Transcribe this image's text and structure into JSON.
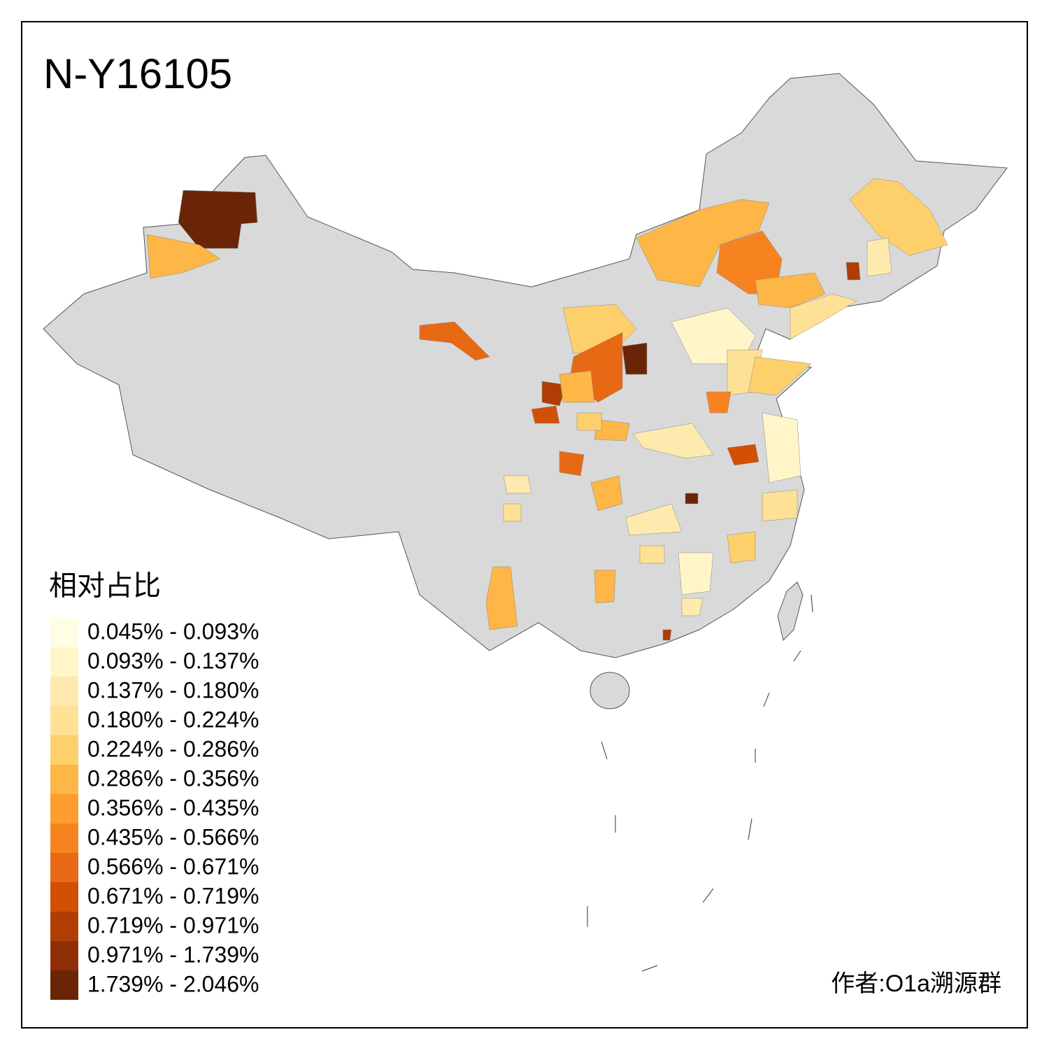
{
  "title": "N-Y16105",
  "legend": {
    "title": "相对占比",
    "items": [
      {
        "label": "0.045% - 0.093%",
        "color": "#fffde3"
      },
      {
        "label": "0.093% - 0.137%",
        "color": "#fff5c9"
      },
      {
        "label": "0.137% - 0.180%",
        "color": "#feeaae"
      },
      {
        "label": "0.180% - 0.224%",
        "color": "#fee195"
      },
      {
        "label": "0.224% - 0.286%",
        "color": "#fed06b"
      },
      {
        "label": "0.286% - 0.356%",
        "color": "#feb646"
      },
      {
        "label": "0.356% - 0.435%",
        "color": "#fd9d2d"
      },
      {
        "label": "0.435% - 0.566%",
        "color": "#f6831f"
      },
      {
        "label": "0.566% - 0.671%",
        "color": "#e86913"
      },
      {
        "label": "0.671% - 0.719%",
        "color": "#d24f05"
      },
      {
        "label": "0.719% - 0.971%",
        "color": "#b03e04"
      },
      {
        "label": "0.971% - 1.739%",
        "color": "#8f2e05"
      },
      {
        "label": "1.739% - 2.046%",
        "color": "#6a2507"
      }
    ]
  },
  "author": "作者:O1a溯源群"
}
